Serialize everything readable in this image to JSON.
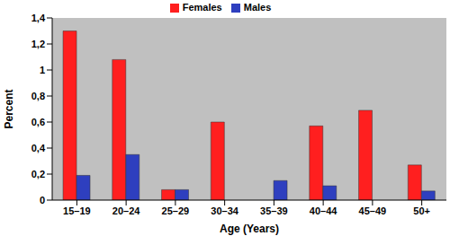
{
  "chart_data": {
    "type": "bar",
    "x_label": "Age (Years)",
    "y_label": "Percent",
    "categories": [
      "15–19",
      "20–24",
      "25–29",
      "30–34",
      "35–39",
      "40–44",
      "45–49",
      "50+"
    ],
    "series": [
      {
        "name": "Females",
        "color": "#ff1f1f",
        "values": [
          1.3,
          1.08,
          0.08,
          0.6,
          0,
          0.57,
          0.69,
          0.27
        ]
      },
      {
        "name": "Males",
        "color": "#2e3fbf",
        "values": [
          0.19,
          0.35,
          0.08,
          0,
          0.15,
          0.11,
          0,
          0.07
        ]
      }
    ],
    "ylim": [
      0,
      1.4
    ],
    "yticks": [
      0,
      {
        "value": 0.2,
        "label": "0,2"
      },
      {
        "value": 0.4,
        "label": "0,4"
      },
      {
        "value": 0.6,
        "label": "0,6"
      },
      {
        "value": 0.8,
        "label": "0,8"
      },
      1,
      {
        "value": 1.2,
        "label": "1,2"
      },
      {
        "value": 1.4,
        "label": "1,4"
      }
    ],
    "grid": false,
    "legend": "top"
  }
}
